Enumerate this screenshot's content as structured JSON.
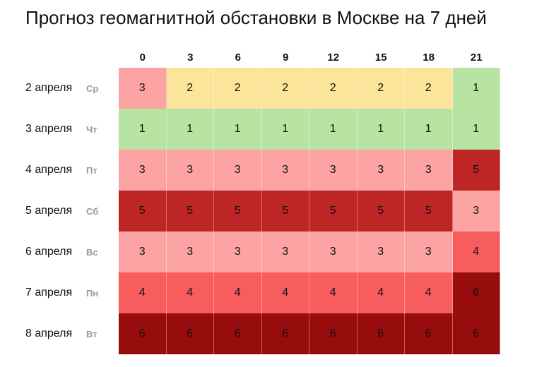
{
  "title": "Прогноз геомагнитной обстановки в Москве на 7 дней",
  "hours": [
    "0",
    "3",
    "6",
    "9",
    "12",
    "15",
    "18",
    "21"
  ],
  "level_colors": {
    "1": "#b7e4a2",
    "2": "#fde49b",
    "3": "#fca4a3",
    "4": "#f75d5c",
    "5": "#be2626",
    "6": "#970c0c"
  },
  "rows": [
    {
      "date": "2 апреля",
      "dow": "Ср",
      "values": [
        "3",
        "2",
        "2",
        "2",
        "2",
        "2",
        "2",
        "1"
      ]
    },
    {
      "date": "3 апреля",
      "dow": "Чт",
      "values": [
        "1",
        "1",
        "1",
        "1",
        "1",
        "1",
        "1",
        "1"
      ]
    },
    {
      "date": "4 апреля",
      "dow": "Пт",
      "values": [
        "3",
        "3",
        "3",
        "3",
        "3",
        "3",
        "3",
        "5"
      ]
    },
    {
      "date": "5 апреля",
      "dow": "Сб",
      "values": [
        "5",
        "5",
        "5",
        "5",
        "5",
        "5",
        "5",
        "3"
      ]
    },
    {
      "date": "6 апреля",
      "dow": "Вс",
      "values": [
        "3",
        "3",
        "3",
        "3",
        "3",
        "3",
        "3",
        "4"
      ]
    },
    {
      "date": "7 апреля",
      "dow": "Пн",
      "values": [
        "4",
        "4",
        "4",
        "4",
        "4",
        "4",
        "4",
        "6"
      ]
    },
    {
      "date": "8 апреля",
      "dow": "Вт",
      "values": [
        "6",
        "6",
        "6",
        "6",
        "6",
        "6",
        "6",
        "6"
      ]
    }
  ]
}
